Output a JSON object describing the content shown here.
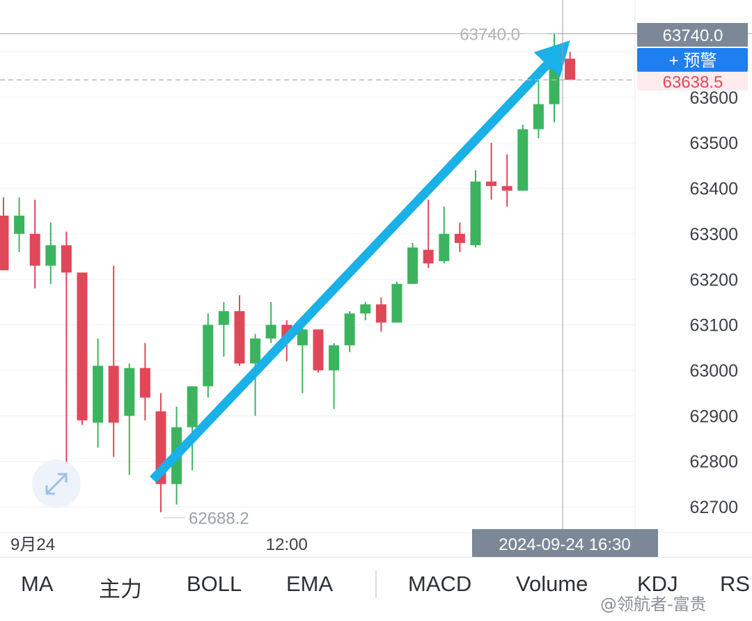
{
  "chart_data": {
    "type": "candlestick",
    "y_axis": {
      "position": "right",
      "ticks": [
        62700,
        62800,
        62900,
        63000,
        63100,
        63200,
        63300,
        63400,
        63500,
        63600
      ],
      "ylim": [
        62650,
        63790
      ]
    },
    "x_axis": {
      "tick_labels": [
        {
          "label": "9月24",
          "index": 0
        },
        {
          "label": "12:00",
          "index": 18
        }
      ]
    },
    "candles": [
      {
        "open": 63340,
        "high": 63380,
        "low": 63220,
        "close": 63220
      },
      {
        "open": 63300,
        "high": 63380,
        "low": 63260,
        "close": 63340
      },
      {
        "open": 63300,
        "high": 63375,
        "low": 63180,
        "close": 63230
      },
      {
        "open": 63230,
        "high": 63325,
        "low": 63190,
        "close": 63275
      },
      {
        "open": 63275,
        "high": 63305,
        "low": 62760,
        "close": 63215
      },
      {
        "open": 63215,
        "high": 63215,
        "low": 62880,
        "close": 62890
      },
      {
        "open": 62885,
        "high": 63070,
        "low": 62830,
        "close": 63010
      },
      {
        "open": 63010,
        "high": 63230,
        "low": 62810,
        "close": 62885
      },
      {
        "open": 62900,
        "high": 63015,
        "low": 62770,
        "close": 63005
      },
      {
        "open": 63005,
        "high": 63060,
        "low": 62890,
        "close": 62940
      },
      {
        "open": 62910,
        "high": 62950,
        "low": 62688.2,
        "close": 62750
      },
      {
        "open": 62750,
        "high": 62920,
        "low": 62705,
        "close": 62875
      },
      {
        "open": 62875,
        "high": 62965,
        "low": 62780,
        "close": 62965
      },
      {
        "open": 62965,
        "high": 63125,
        "low": 62940,
        "close": 63100
      },
      {
        "open": 63100,
        "high": 63150,
        "low": 63030,
        "close": 63130
      },
      {
        "open": 63130,
        "high": 63165,
        "low": 63010,
        "close": 63015
      },
      {
        "open": 63015,
        "high": 63080,
        "low": 62900,
        "close": 63070
      },
      {
        "open": 63070,
        "high": 63150,
        "low": 63060,
        "close": 63100
      },
      {
        "open": 63100,
        "high": 63110,
        "low": 63020,
        "close": 63070
      },
      {
        "open": 63055,
        "high": 63100,
        "low": 62950,
        "close": 63090
      },
      {
        "open": 63090,
        "high": 63090,
        "low": 62995,
        "close": 63000
      },
      {
        "open": 63000,
        "high": 63060,
        "low": 62915,
        "close": 63055
      },
      {
        "open": 63055,
        "high": 63130,
        "low": 63040,
        "close": 63125
      },
      {
        "open": 63125,
        "high": 63150,
        "low": 63110,
        "close": 63145
      },
      {
        "open": 63145,
        "high": 63160,
        "low": 63085,
        "close": 63105
      },
      {
        "open": 63105,
        "high": 63195,
        "low": 63105,
        "close": 63190
      },
      {
        "open": 63190,
        "high": 63280,
        "low": 63190,
        "close": 63270
      },
      {
        "open": 63265,
        "high": 63375,
        "low": 63225,
        "close": 63235
      },
      {
        "open": 63240,
        "high": 63360,
        "low": 63235,
        "close": 63300
      },
      {
        "open": 63300,
        "high": 63325,
        "low": 63260,
        "close": 63280
      },
      {
        "open": 63275,
        "high": 63440,
        "low": 63270,
        "close": 63415
      },
      {
        "open": 63415,
        "high": 63500,
        "low": 63375,
        "close": 63405
      },
      {
        "open": 63405,
        "high": 63475,
        "low": 63360,
        "close": 63395
      },
      {
        "open": 63395,
        "high": 63540,
        "low": 63395,
        "close": 63530
      },
      {
        "open": 63530,
        "high": 63650,
        "low": 63510,
        "close": 63585
      },
      {
        "open": 63585,
        "high": 63740,
        "low": 63545,
        "close": 63700
      },
      {
        "open": 63685,
        "high": 63700,
        "low": 63638.5,
        "close": 63638.5
      }
    ],
    "annotations": {
      "high_label": "63740.0",
      "low_label": "62688.2",
      "crosshair_price": "63740.0",
      "current_price": "63638.5",
      "crosshair_time": "2024-09-24 16:30"
    },
    "alert_button": "+ 预警",
    "trend_arrow": {
      "from_index": 9.5,
      "from_value": 62760,
      "to_index": 36,
      "to_value": 63725,
      "color": "#1ab0e8"
    }
  },
  "colors": {
    "up": "#3cb45f",
    "down": "#e0485a",
    "price_badge": "#7c8898",
    "alert_badge": "#1e7ff0",
    "current_price_text": "#e0485a"
  },
  "tabs": [
    "MA",
    "主力",
    "BOLL",
    "EMA",
    "MACD",
    "Volume",
    "KDJ",
    "RSI"
  ],
  "watermark": "@领航者-富贵",
  "expand_icon": "expand-arrows-icon"
}
